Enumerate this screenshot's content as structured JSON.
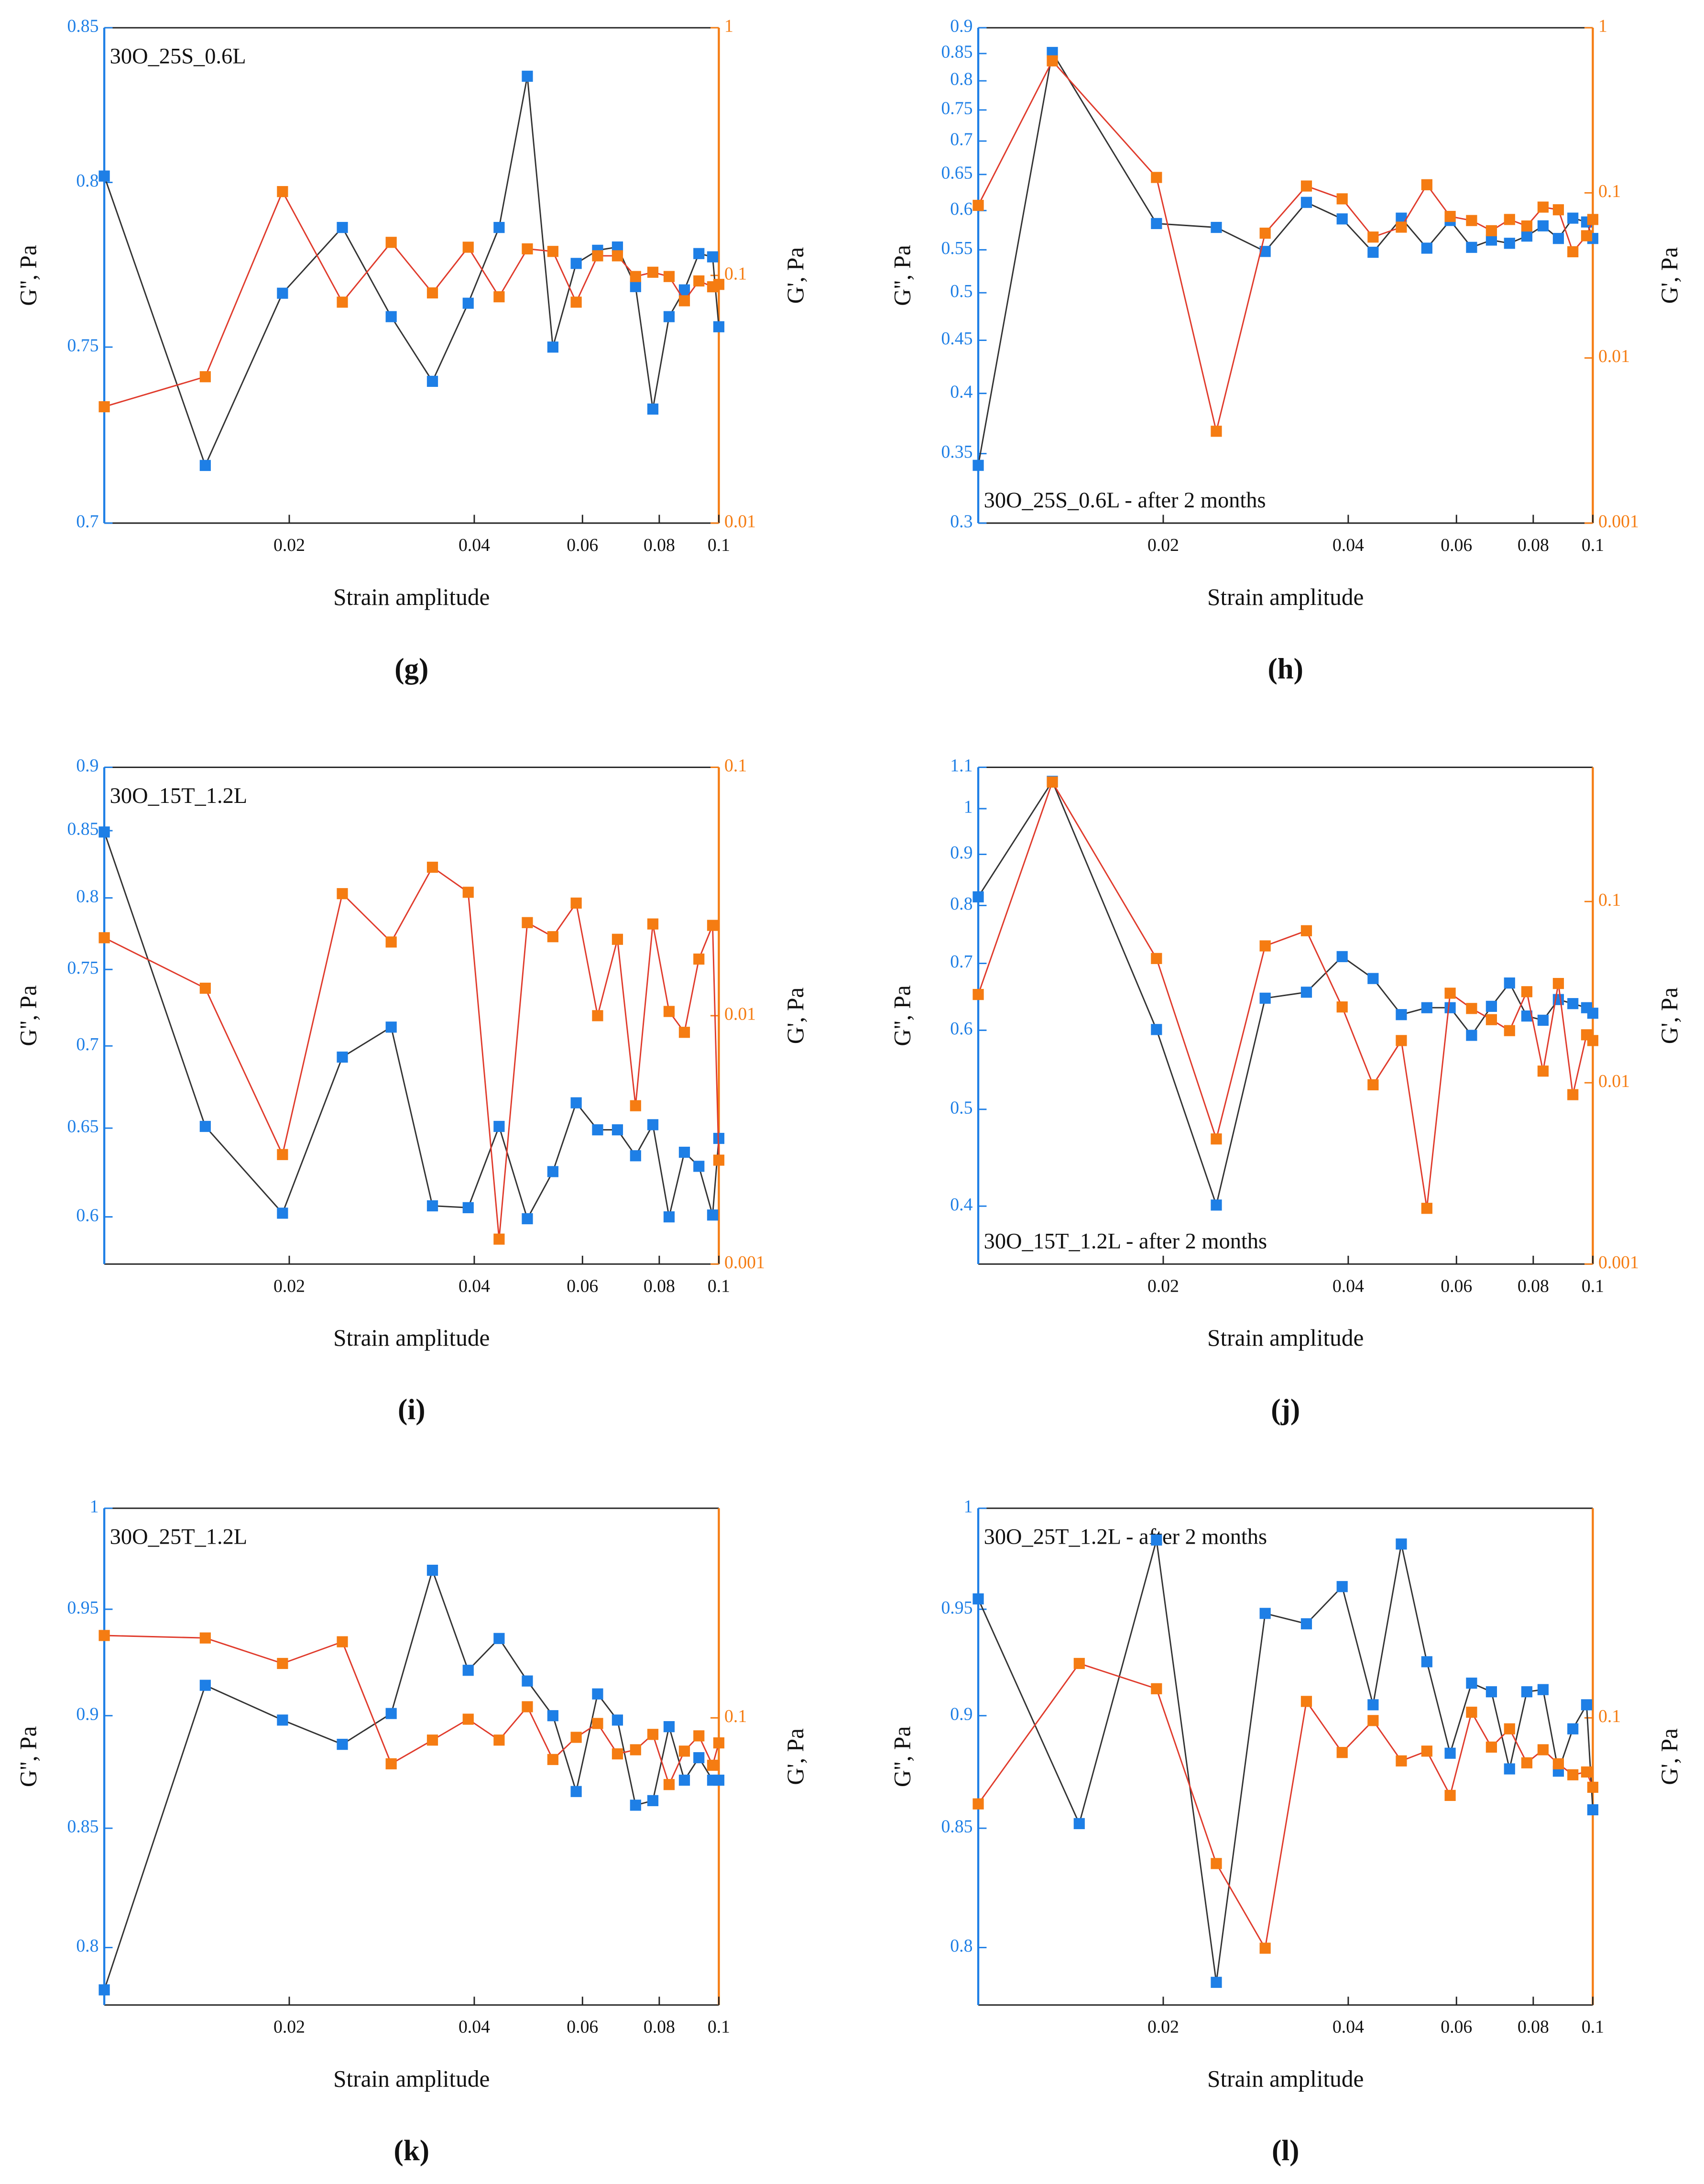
{
  "chart_data": [
    {
      "type": "line",
      "label": "(g)",
      "annotation": "30O_25S_0.6L",
      "annotation_corner": "top-left",
      "xlabel": "Strain amplitude",
      "ylabel": "G'', Pa",
      "y2label": "G', Pa",
      "xlog": true,
      "ylog": true,
      "y2log": true,
      "x": [
        0.01,
        0.0146,
        0.0195,
        0.0244,
        0.0293,
        0.0342,
        0.0391,
        0.0439,
        0.0488,
        0.0537,
        0.0586,
        0.0635,
        0.0684,
        0.0732,
        0.0781,
        0.083,
        0.0879,
        0.0928,
        0.0977,
        0.1
      ],
      "xlim": [
        0.01,
        0.1
      ],
      "xticks": [
        0.02,
        0.04,
        0.06,
        0.08,
        0.1
      ],
      "ylim": [
        0.7,
        0.85
      ],
      "yticks": [
        0.7,
        0.75,
        0.8,
        0.85
      ],
      "y2lim": [
        0.01,
        1
      ],
      "y2ticks": [
        0.01,
        0.1,
        1
      ],
      "series": [
        {
          "color": "#1e7fe6",
          "line_color": "#333333",
          "values": [
            0.802,
            0.716,
            0.766,
            0.786,
            0.759,
            0.74,
            0.763,
            0.786,
            0.834,
            0.75,
            0.775,
            0.779,
            0.78,
            0.768,
            0.732,
            0.759,
            0.767,
            0.778,
            0.777,
            0.756
          ]
        },
        {
          "color": "#f57c12",
          "line_color": "#e03b2c",
          "axis": "y2",
          "values": [
            0.0295,
            0.039,
            0.218,
            0.078,
            0.136,
            0.085,
            0.13,
            0.082,
            0.128,
            0.125,
            0.078,
            0.12,
            0.12,
            0.099,
            0.103,
            0.099,
            0.079,
            0.095,
            0.09,
            0.092
          ]
        }
      ]
    },
    {
      "type": "line",
      "label": "(h)",
      "annotation": "30O_25S_0.6L  - after 2 months",
      "annotation_corner": "bottom-left",
      "xlabel": "Strain amplitude",
      "ylabel": "G'', Pa",
      "y2label": "G', Pa",
      "xlog": true,
      "ylog": true,
      "y2log": true,
      "x": [
        0.01,
        0.0132,
        0.0195,
        0.0244,
        0.0293,
        0.0342,
        0.0391,
        0.0439,
        0.0488,
        0.0537,
        0.0586,
        0.0635,
        0.0684,
        0.0732,
        0.0781,
        0.083,
        0.0879,
        0.0928,
        0.0977,
        0.1
      ],
      "xlim": [
        0.01,
        0.1
      ],
      "xticks": [
        0.02,
        0.04,
        0.06,
        0.08,
        0.1
      ],
      "ylim": [
        0.3,
        0.9
      ],
      "yticks": [
        0.3,
        0.35,
        0.4,
        0.45,
        0.5,
        0.55,
        0.6,
        0.65,
        0.7,
        0.75,
        0.8,
        0.85,
        0.9
      ],
      "y2lim": [
        0.001,
        1
      ],
      "y2ticks": [
        0.001,
        0.01,
        0.1,
        1
      ],
      "series": [
        {
          "color": "#1e7fe6",
          "line_color": "#333333",
          "values": [
            0.341,
            0.852,
            0.583,
            0.578,
            0.548,
            0.611,
            0.589,
            0.547,
            0.59,
            0.552,
            0.587,
            0.553,
            0.562,
            0.558,
            0.567,
            0.58,
            0.564,
            0.59,
            0.585,
            0.564
          ]
        },
        {
          "color": "#f57c12",
          "line_color": "#e03b2c",
          "axis": "y2",
          "values": [
            0.084,
            0.63,
            0.124,
            0.0036,
            0.057,
            0.11,
            0.092,
            0.054,
            0.062,
            0.112,
            0.072,
            0.068,
            0.059,
            0.069,
            0.063,
            0.082,
            0.079,
            0.044,
            0.055,
            0.069
          ]
        }
      ]
    },
    {
      "type": "line",
      "label": "(i)",
      "annotation": "30O_15T_1.2L",
      "annotation_corner": "top-left",
      "xlabel": "Strain amplitude",
      "ylabel": "G'', Pa",
      "y2label": "G', Pa",
      "xlog": true,
      "ylog": true,
      "y2log": true,
      "x": [
        0.01,
        0.0146,
        0.0195,
        0.0244,
        0.0293,
        0.0342,
        0.0391,
        0.0439,
        0.0488,
        0.0537,
        0.0586,
        0.0635,
        0.0684,
        0.0732,
        0.0781,
        0.083,
        0.0879,
        0.0928,
        0.0977,
        0.1
      ],
      "xlim": [
        0.01,
        0.1
      ],
      "xticks": [
        0.02,
        0.04,
        0.06,
        0.08,
        0.1
      ],
      "ylim": [
        0.575,
        0.9
      ],
      "yticks": [
        0.6,
        0.65,
        0.7,
        0.75,
        0.8,
        0.85,
        0.9
      ],
      "y2lim": [
        0.001,
        0.1
      ],
      "y2ticks": [
        0.001,
        0.01,
        0.1
      ],
      "series": [
        {
          "color": "#1e7fe6",
          "line_color": "#333333",
          "values": [
            0.849,
            0.651,
            0.602,
            0.693,
            0.712,
            0.606,
            0.605,
            0.651,
            0.599,
            0.625,
            0.665,
            0.649,
            0.649,
            0.634,
            0.652,
            0.6,
            0.636,
            0.628,
            0.601,
            0.644
          ]
        },
        {
          "color": "#f57c12",
          "line_color": "#e03b2c",
          "axis": "y2",
          "values": [
            0.0206,
            0.0129,
            0.00276,
            0.031,
            0.0198,
            0.0396,
            0.0314,
            0.00126,
            0.0237,
            0.0208,
            0.0284,
            0.01,
            0.0203,
            0.00434,
            0.0234,
            0.0104,
            0.00857,
            0.0169,
            0.0231,
            0.00262
          ]
        }
      ]
    },
    {
      "type": "line",
      "label": "(j)",
      "annotation": "30O_15T_1.2L  - after 2 months",
      "annotation_corner": "bottom-left",
      "xlabel": "Strain amplitude",
      "ylabel": "G'', Pa",
      "y2label": "G', Pa",
      "xlog": true,
      "ylog": true,
      "y2log": true,
      "x": [
        0.01,
        0.0132,
        0.0195,
        0.0244,
        0.0293,
        0.0342,
        0.0391,
        0.0439,
        0.0488,
        0.0537,
        0.0586,
        0.0635,
        0.0684,
        0.0732,
        0.0781,
        0.083,
        0.0879,
        0.0928,
        0.0977,
        0.1
      ],
      "xlim": [
        0.01,
        0.1
      ],
      "xticks": [
        0.02,
        0.04,
        0.06,
        0.08,
        0.1
      ],
      "ylim": [
        0.35,
        1.1
      ],
      "yticks": [
        0.4,
        0.5,
        0.6,
        0.7,
        0.8,
        0.9,
        1,
        1.1
      ],
      "y2lim": [
        0.001,
        0.55
      ],
      "y2ticks": [
        0.001,
        0.01,
        0.1
      ],
      "series": [
        {
          "color": "#1e7fe6",
          "line_color": "#333333",
          "values": [
            0.816,
            1.065,
            0.601,
            0.401,
            0.646,
            0.655,
            0.711,
            0.676,
            0.622,
            0.632,
            0.632,
            0.593,
            0.634,
            0.669,
            0.62,
            0.614,
            0.644,
            0.638,
            0.632,
            0.624
          ]
        },
        {
          "color": "#f57c12",
          "line_color": "#e03b2c",
          "axis": "y2",
          "values": [
            0.0307,
            0.456,
            0.0485,
            0.0049,
            0.0569,
            0.069,
            0.0262,
            0.00975,
            0.0171,
            0.00203,
            0.0312,
            0.0257,
            0.0223,
            0.0194,
            0.0318,
            0.0116,
            0.0353,
            0.0086,
            0.0184,
            0.0171
          ]
        }
      ]
    },
    {
      "type": "line",
      "label": "(k)",
      "annotation": "30O_25T_1.2L",
      "annotation_corner": "top-left",
      "xlabel": "Strain amplitude",
      "ylabel": "G'', Pa",
      "y2label": "G', Pa",
      "xlog": true,
      "ylog": true,
      "y2log": true,
      "x": [
        0.01,
        0.0146,
        0.0195,
        0.0244,
        0.0293,
        0.0342,
        0.0391,
        0.0439,
        0.0488,
        0.0537,
        0.0586,
        0.0635,
        0.0684,
        0.0732,
        0.0781,
        0.083,
        0.0879,
        0.0928,
        0.0977,
        0.1
      ],
      "xlim": [
        0.01,
        0.1
      ],
      "xticks": [
        0.02,
        0.04,
        0.06,
        0.08,
        0.1
      ],
      "ylim": [
        0.777,
        1
      ],
      "yticks": [
        0.8,
        0.85,
        0.9,
        0.95,
        1
      ],
      "y2lim": [
        0.0222,
        0.3
      ],
      "y2ticks": [
        0.1
      ],
      "series": [
        {
          "color": "#1e7fe6",
          "line_color": "#333333",
          "values": [
            0.783,
            0.914,
            0.898,
            0.887,
            0.901,
            0.969,
            0.921,
            0.936,
            0.916,
            0.9,
            0.866,
            0.91,
            0.898,
            0.86,
            0.862,
            0.895,
            0.871,
            0.881,
            0.871,
            0.871
          ]
        },
        {
          "color": "#f57c12",
          "line_color": "#e03b2c",
          "axis": "y2",
          "values": [
            0.154,
            0.152,
            0.133,
            0.149,
            0.0786,
            0.089,
            0.0993,
            0.089,
            0.106,
            0.0804,
            0.0903,
            0.0971,
            0.0828,
            0.0846,
            0.0917,
            0.0705,
            0.084,
            0.091,
            0.078,
            0.0877
          ]
        }
      ]
    },
    {
      "type": "line",
      "label": "(l)",
      "annotation": "30O_25T_1.2L  - after 2 months",
      "annotation_corner": "top-left",
      "xlabel": "Strain amplitude",
      "ylabel": "G'', Pa",
      "y2label": "G', Pa",
      "xlog": true,
      "ylog": true,
      "y2log": true,
      "x": [
        0.01,
        0.0146,
        0.0195,
        0.0244,
        0.0293,
        0.0342,
        0.0391,
        0.0439,
        0.0488,
        0.0537,
        0.0586,
        0.0635,
        0.0684,
        0.0732,
        0.0781,
        0.083,
        0.0879,
        0.0928,
        0.0977,
        0.1
      ],
      "xlim": [
        0.01,
        0.1
      ],
      "xticks": [
        0.02,
        0.04,
        0.06,
        0.08,
        0.1
      ],
      "ylim": [
        0.777,
        1
      ],
      "yticks": [
        0.8,
        0.85,
        0.9,
        0.95,
        1
      ],
      "y2lim": [
        0.0222,
        0.3
      ],
      "y2ticks": [
        0.1
      ],
      "series": [
        {
          "color": "#1e7fe6",
          "line_color": "#333333",
          "values": [
            0.955,
            0.852,
            0.984,
            0.786,
            0.948,
            0.943,
            0.961,
            0.905,
            0.982,
            0.925,
            0.883,
            0.915,
            0.911,
            0.876,
            0.911,
            0.912,
            0.875,
            0.894,
            0.905,
            0.858
          ]
        },
        {
          "color": "#f57c12",
          "line_color": "#e03b2c",
          "axis": "y2",
          "values": [
            0.0637,
            0.133,
            0.1165,
            0.0466,
            0.0299,
            0.109,
            0.0834,
            0.0986,
            0.0798,
            0.084,
            0.0666,
            0.103,
            0.0858,
            0.0944,
            0.079,
            0.0846,
            0.0786,
            0.0742,
            0.0753,
            0.0695
          ]
        }
      ]
    }
  ]
}
